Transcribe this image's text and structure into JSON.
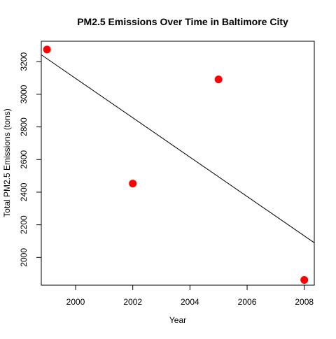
{
  "chart_data": {
    "type": "scatter",
    "title": "PM2.5 Emissions Over Time in Baltimore City",
    "xlabel": "Year",
    "ylabel": "Total PM2.5 Emissions (tons)",
    "xlim": [
      1998.8,
      2008.35
    ],
    "ylim": [
      1830,
      3325
    ],
    "x_ticks": [
      2000,
      2002,
      2004,
      2006,
      2008
    ],
    "y_ticks": [
      2000,
      2200,
      2400,
      2600,
      2800,
      3000,
      3200
    ],
    "grid": false,
    "legend": "none",
    "series": [
      {
        "x": [
          1999,
          2002,
          2005,
          2008
        ],
        "y": [
          3274,
          2453,
          3091,
          1862
        ],
        "color": "#ff0000",
        "marker": "filled-circle"
      }
    ],
    "trend_line": {
      "x": [
        1998.8,
        2008.35
      ],
      "y": [
        3242,
        2090
      ],
      "color": "#000000"
    }
  }
}
